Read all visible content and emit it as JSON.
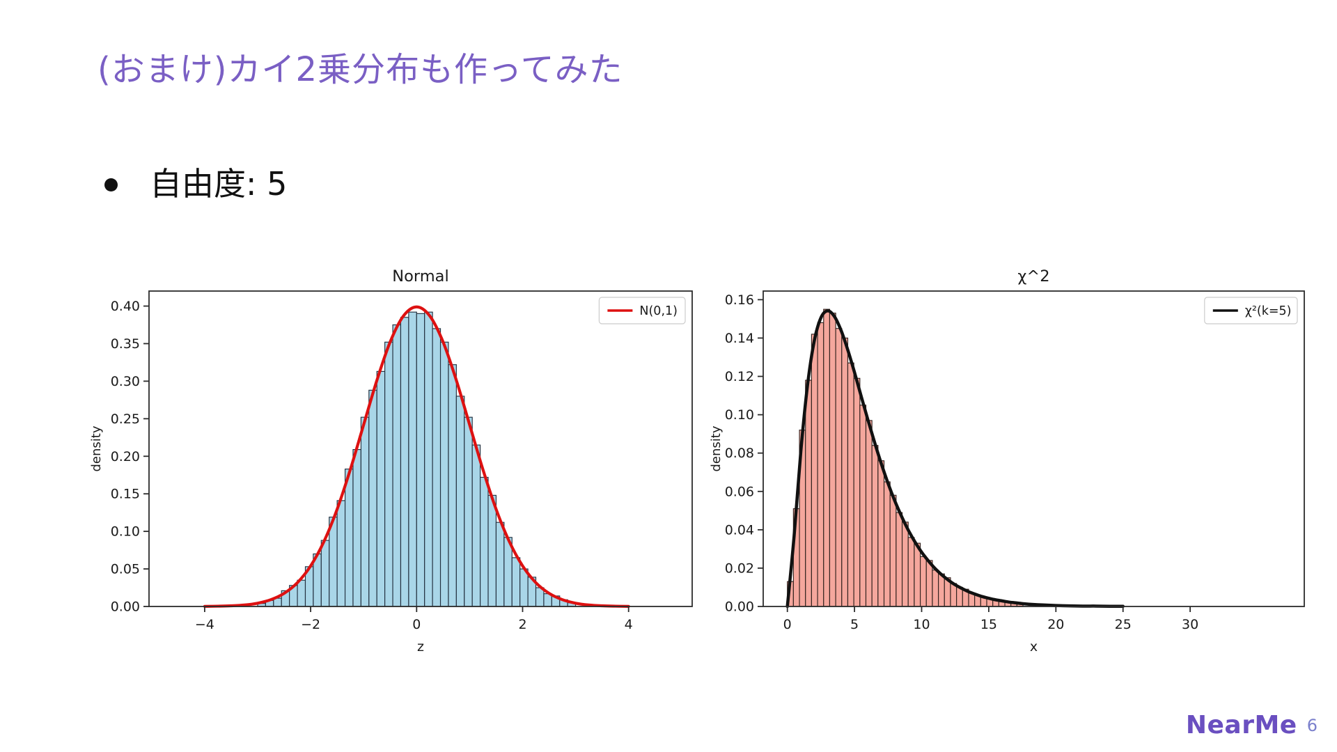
{
  "slide": {
    "title": "(おまけ)カイ2乗分布も作ってみた",
    "title_color": "#7a5fc4",
    "bullet": "自由度: 5",
    "footer_logo": "NearMe",
    "logo_color": "#6a4fc0",
    "page_number": "6",
    "page_number_color": "#7b80cc"
  },
  "chart_data": [
    {
      "type": "bar",
      "subtype": "histogram-with-density-line",
      "title": "Normal",
      "xlabel": "z",
      "ylabel": "density",
      "xlim": [
        -5.05,
        5.2
      ],
      "ylim": [
        0,
        0.42
      ],
      "xticks": [
        -4,
        -2,
        0,
        2,
        4
      ],
      "yticks": [
        0,
        0.05,
        0.1,
        0.15,
        0.2,
        0.25,
        0.3,
        0.35,
        0.4
      ],
      "ytick_decimals": 2,
      "grid": false,
      "legend": {
        "label": "N(0,1)",
        "color": "#dd1111",
        "position": "upper right"
      },
      "bars": {
        "fill": "#a9d6e8",
        "edge": "#23303f",
        "x0": -3.0,
        "bin_width": 0.15,
        "heights": [
          0.004,
          0.008,
          0.011,
          0.021,
          0.028,
          0.035,
          0.053,
          0.07,
          0.088,
          0.119,
          0.141,
          0.183,
          0.209,
          0.252,
          0.288,
          0.313,
          0.352,
          0.375,
          0.385,
          0.392,
          0.39,
          0.392,
          0.37,
          0.352,
          0.322,
          0.28,
          0.252,
          0.215,
          0.172,
          0.148,
          0.112,
          0.092,
          0.065,
          0.05,
          0.039,
          0.025,
          0.017,
          0.014,
          0.009,
          0.005
        ]
      },
      "curve": {
        "color": "#dd1111",
        "width": 4.2,
        "x": [
          -4,
          -3.75,
          -3.5,
          -3.25,
          -3,
          -2.75,
          -2.5,
          -2.25,
          -2,
          -1.75,
          -1.5,
          -1.25,
          -1,
          -0.75,
          -0.5,
          -0.25,
          0,
          0.25,
          0.5,
          0.75,
          1,
          1.25,
          1.5,
          1.75,
          2,
          2.25,
          2.5,
          2.75,
          3,
          3.25,
          3.5,
          3.75,
          4
        ],
        "y": [
          0.0001,
          0.0004,
          0.0009,
          0.002,
          0.0044,
          0.0091,
          0.0175,
          0.0317,
          0.054,
          0.0863,
          0.1295,
          0.1826,
          0.242,
          0.3011,
          0.3521,
          0.3867,
          0.3989,
          0.3867,
          0.3521,
          0.3011,
          0.242,
          0.1826,
          0.1295,
          0.0863,
          0.054,
          0.0317,
          0.0175,
          0.0091,
          0.0044,
          0.002,
          0.0009,
          0.0004,
          0.0001
        ]
      }
    },
    {
      "type": "bar",
      "subtype": "histogram-with-density-line",
      "title": "χ^2",
      "xlabel": "x",
      "ylabel": "density",
      "xlim": [
        -1.8,
        38.5
      ],
      "ylim": [
        0,
        0.1645
      ],
      "xticks": [
        0,
        5,
        10,
        15,
        20,
        25,
        30
      ],
      "yticks": [
        0,
        0.02,
        0.04,
        0.06,
        0.08,
        0.1,
        0.12,
        0.14,
        0.16
      ],
      "ytick_decimals": 2,
      "grid": false,
      "legend": {
        "label": "χ²(k=5)",
        "color": "#111111",
        "position": "upper right"
      },
      "bars": {
        "fill": "#f5a79d",
        "edge": "#33231f",
        "x0": 0,
        "bin_width": 0.45,
        "heights": [
          0.013,
          0.051,
          0.092,
          0.118,
          0.142,
          0.148,
          0.155,
          0.153,
          0.145,
          0.14,
          0.127,
          0.119,
          0.105,
          0.097,
          0.084,
          0.076,
          0.065,
          0.058,
          0.049,
          0.044,
          0.036,
          0.033,
          0.026,
          0.024,
          0.019,
          0.017,
          0.015,
          0.012,
          0.01,
          0.009,
          0.007,
          0.006,
          0.005,
          0.004,
          0.0035,
          0.003,
          0.0025,
          0.002,
          0.0017
        ]
      },
      "curve": {
        "color": "#111111",
        "width": 4.5,
        "x": [
          0,
          0.5,
          1,
          1.5,
          2,
          2.5,
          3,
          3.5,
          4,
          4.5,
          5,
          5.5,
          6,
          6.5,
          7,
          7.5,
          8,
          8.5,
          9,
          9.5,
          10,
          10.5,
          11,
          11.5,
          12,
          12.5,
          13,
          13.5,
          14,
          14.5,
          15,
          15.5,
          16,
          16.5,
          17,
          17.5,
          18,
          19,
          20,
          21,
          22,
          23,
          24,
          25
        ],
        "y": [
          0,
          0.0366,
          0.0807,
          0.1154,
          0.1384,
          0.1506,
          0.1542,
          0.1513,
          0.144,
          0.1338,
          0.1221,
          0.1096,
          0.0973,
          0.0855,
          0.0744,
          0.0642,
          0.0551,
          0.0471,
          0.0399,
          0.0337,
          0.0283,
          0.0238,
          0.0198,
          0.0165,
          0.0137,
          0.0113,
          0.0094,
          0.0077,
          0.0064,
          0.0052,
          0.0043,
          0.0035,
          0.0029,
          0.0023,
          0.0019,
          0.0015,
          0.0012,
          0.0008,
          0.0005,
          0.0003,
          0.0002,
          0.0002,
          0.0001,
          0.0001
        ]
      }
    }
  ]
}
